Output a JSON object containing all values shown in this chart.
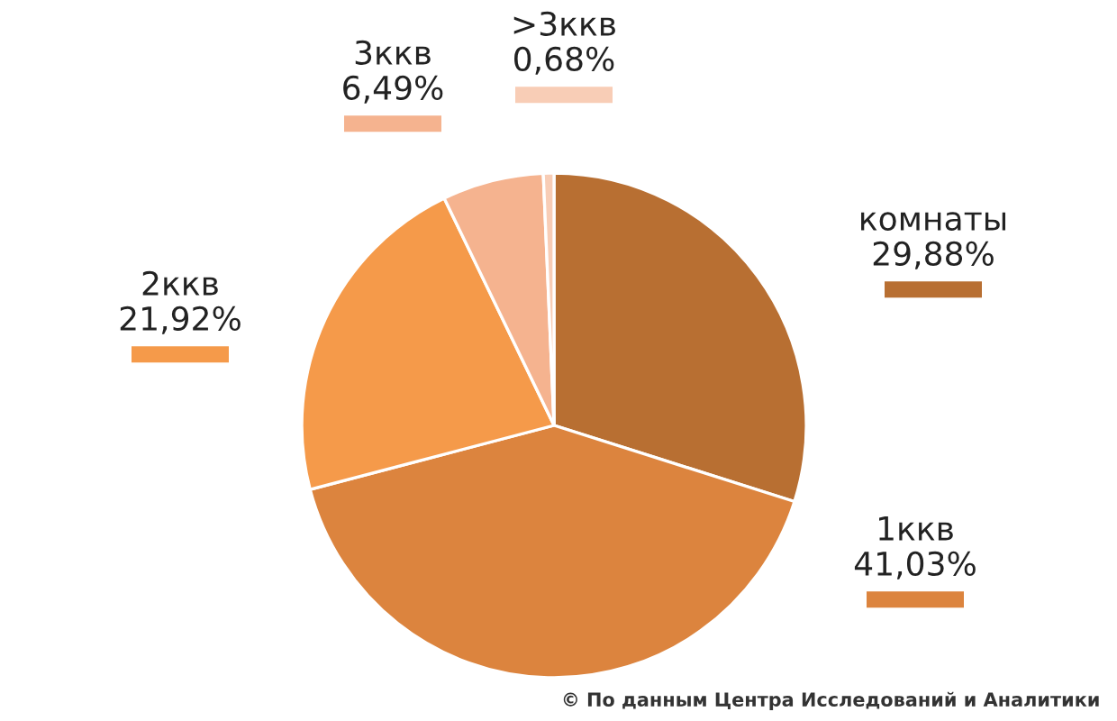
{
  "chart_data": {
    "type": "pie",
    "categories": [
      "комнаты",
      "1ккв",
      "2ккв",
      "3ккв",
      ">3ккв"
    ],
    "values": [
      29.88,
      41.03,
      21.92,
      6.49,
      0.68
    ],
    "value_labels": [
      "29,88%",
      "41,03%",
      "21,92%",
      "6,49%",
      "0,68%"
    ],
    "colors": [
      "#b86f32",
      "#dc843e",
      "#f59a4a",
      "#f5b38f",
      "#f8cdb6"
    ],
    "annotations": [
      "© По данным Центра Исследований и Аналитики"
    ]
  }
}
